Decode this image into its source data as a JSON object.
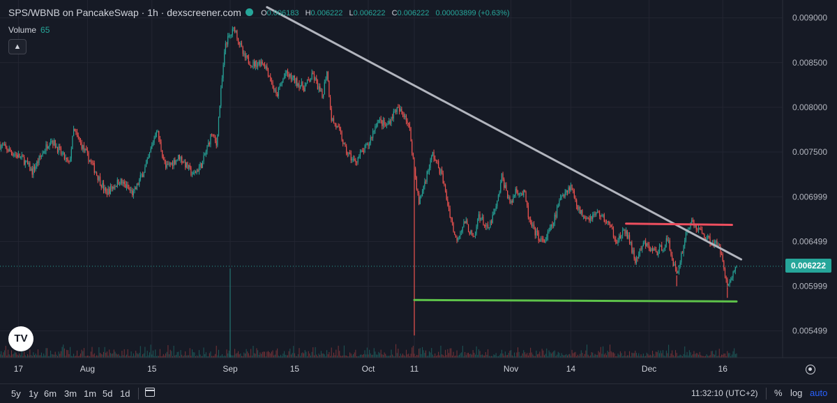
{
  "header": {
    "title": "SPS/WBNB on PancakeSwap · 1h · dexscreener.com",
    "ohlc": [
      {
        "label": "O",
        "value": "0.006183"
      },
      {
        "label": "H",
        "value": "0.006222"
      },
      {
        "label": "L",
        "value": "0.006222"
      },
      {
        "label": "C",
        "value": "0.006222"
      }
    ],
    "change": "0.00003899 (+0.63%)",
    "status_color": "#26a69a"
  },
  "volume": {
    "label": "Volume",
    "value": "65"
  },
  "last_price": "0.006222",
  "logo_text": "TV",
  "chart_data": {
    "type": "candlestick",
    "y_ticks": [
      "0.009000",
      "0.008500",
      "0.008000",
      "0.007500",
      "0.006999",
      "0.006499",
      "0.005999",
      "0.005499"
    ],
    "ylim": [
      0.0052,
      0.0092
    ],
    "x_ticks": [
      {
        "label": "17",
        "day": 0
      },
      {
        "label": "Aug",
        "day": 15
      },
      {
        "label": "15",
        "day": 29
      },
      {
        "label": "Sep",
        "day": 46
      },
      {
        "label": "15",
        "day": 60
      },
      {
        "label": "Oct",
        "day": 76
      },
      {
        "label": "11",
        "day": 86
      },
      {
        "label": "Nov",
        "day": 107
      },
      {
        "label": "14",
        "day": 120
      },
      {
        "label": "Dec",
        "day": 137
      },
      {
        "label": "16",
        "day": 153
      }
    ],
    "x_domain": [
      -4,
      166
    ],
    "price_path": [
      [
        -4,
        0.00758
      ],
      [
        1,
        0.00742
      ],
      [
        3,
        0.00728
      ],
      [
        7,
        0.00765
      ],
      [
        11,
        0.00736
      ],
      [
        12,
        0.00774
      ],
      [
        16,
        0.00736
      ],
      [
        19,
        0.00704
      ],
      [
        22,
        0.00718
      ],
      [
        25,
        0.00703
      ],
      [
        28,
        0.00738
      ],
      [
        30,
        0.00776
      ],
      [
        32,
        0.00732
      ],
      [
        35,
        0.00745
      ],
      [
        38,
        0.00724
      ],
      [
        40,
        0.00738
      ],
      [
        42,
        0.00771
      ],
      [
        43,
        0.00758
      ],
      [
        44,
        0.00818
      ],
      [
        45,
        0.00872
      ],
      [
        46,
        0.0088
      ],
      [
        47,
        0.00889
      ],
      [
        48,
        0.00872
      ],
      [
        49,
        0.00856
      ],
      [
        51,
        0.00848
      ],
      [
        53,
        0.00851
      ],
      [
        54,
        0.00843
      ],
      [
        56,
        0.00812
      ],
      [
        58,
        0.00838
      ],
      [
        62,
        0.00822
      ],
      [
        64,
        0.00836
      ],
      [
        66,
        0.00811
      ],
      [
        67,
        0.00842
      ],
      [
        68,
        0.00788
      ],
      [
        70,
        0.0077
      ],
      [
        71,
        0.00752
      ],
      [
        73,
        0.00739
      ],
      [
        76,
        0.00758
      ],
      [
        78,
        0.00786
      ],
      [
        80,
        0.00779
      ],
      [
        82,
        0.00798
      ],
      [
        84,
        0.00792
      ],
      [
        85,
        0.00774
      ],
      [
        86,
        0.00732
      ],
      [
        87,
        0.00692
      ],
      [
        88,
        0.00712
      ],
      [
        90,
        0.00748
      ],
      [
        92,
        0.00724
      ],
      [
        93,
        0.00698
      ],
      [
        95,
        0.00652
      ],
      [
        97,
        0.00672
      ],
      [
        99,
        0.00651
      ],
      [
        100,
        0.00681
      ],
      [
        102,
        0.00662
      ],
      [
        104,
        0.00692
      ],
      [
        105,
        0.00722
      ],
      [
        107,
        0.00691
      ],
      [
        108,
        0.00708
      ],
      [
        110,
        0.00702
      ],
      [
        111,
        0.00672
      ],
      [
        112,
        0.00662
      ],
      [
        114,
        0.00648
      ],
      [
        116,
        0.00668
      ],
      [
        118,
        0.00702
      ],
      [
        120,
        0.00712
      ],
      [
        122,
        0.00682
      ],
      [
        124,
        0.00677
      ],
      [
        126,
        0.00682
      ],
      [
        128,
        0.00671
      ],
      [
        130,
        0.00651
      ],
      [
        132,
        0.00662
      ],
      [
        134,
        0.00628
      ],
      [
        136,
        0.00648
      ],
      [
        137,
        0.00642
      ],
      [
        139,
        0.00638
      ],
      [
        141,
        0.00652
      ],
      [
        143,
        0.00612
      ],
      [
        145,
        0.00658
      ],
      [
        146,
        0.00672
      ],
      [
        148,
        0.00662
      ],
      [
        150,
        0.00652
      ],
      [
        152,
        0.00645
      ],
      [
        153,
        0.00632
      ],
      [
        154,
        0.00598
      ],
      [
        155,
        0.00612
      ],
      [
        156,
        0.00622
      ]
    ],
    "spikes": [
      {
        "day": 86,
        "low": 0.005449
      },
      {
        "day": 143,
        "low": 0.005999
      },
      {
        "day": 154,
        "low": 0.005869
      }
    ],
    "volume_spike_day": 46,
    "trendlines": [
      {
        "color": "#b2b5be",
        "from": [
          54,
          0.00912
        ],
        "to": [
          157,
          0.006299
        ]
      },
      {
        "color": "#ef4f5f",
        "from": [
          132,
          0.006699
        ],
        "to": [
          155,
          0.006685
        ]
      },
      {
        "color": "#5ec34a",
        "from": [
          86,
          0.005845
        ],
        "to": [
          156,
          0.005829
        ]
      }
    ],
    "up_color": "#26a69a",
    "down_color": "#ef5350"
  },
  "ranges": [
    "5y",
    "1y",
    "6m",
    "3m",
    "1m",
    "5d",
    "1d"
  ],
  "clock": "11:32:10 (UTC+2)",
  "options": {
    "percent": "%",
    "log": "log",
    "auto": "auto",
    "auto_color": "#2962ff"
  }
}
